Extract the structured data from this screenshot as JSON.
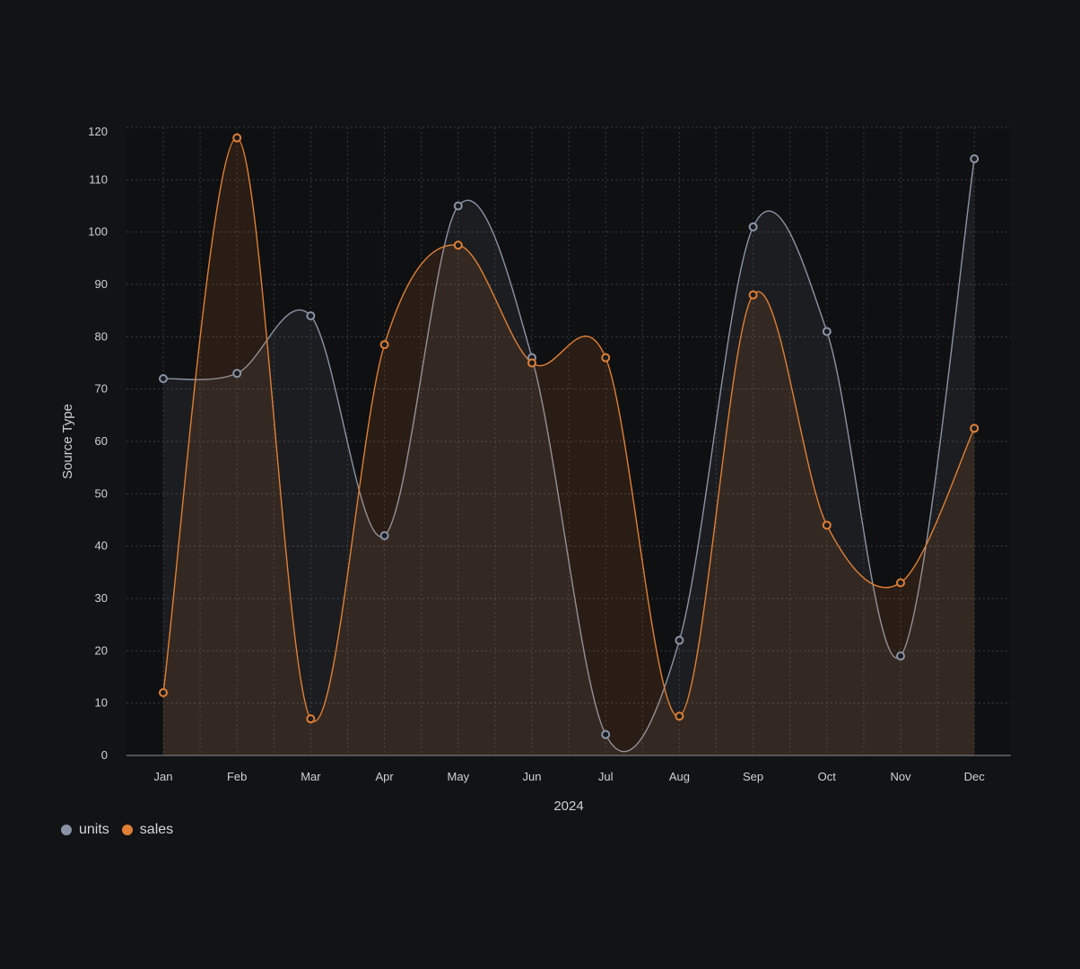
{
  "chart_data": {
    "type": "area",
    "categories": [
      "Jan",
      "Feb",
      "Mar",
      "Apr",
      "May",
      "Jun",
      "Jul",
      "Aug",
      "Sep",
      "Oct",
      "Nov",
      "Dec"
    ],
    "series": [
      {
        "name": "units",
        "color": "#8a94a6",
        "values": [
          72,
          73,
          84,
          42,
          105,
          76,
          4,
          22,
          101,
          81,
          19,
          114
        ]
      },
      {
        "name": "sales",
        "color": "#e07f35",
        "values": [
          12,
          118,
          7,
          78.5,
          97.5,
          75,
          76,
          7.5,
          88,
          44,
          33,
          62.5
        ]
      }
    ],
    "xlabel": "2024",
    "ylabel": "Source Type",
    "ylim": [
      0,
      120
    ],
    "yticks": [
      0,
      10,
      20,
      30,
      40,
      50,
      60,
      70,
      80,
      90,
      100,
      110,
      120
    ],
    "grid": true,
    "legend_position": "bottom-left"
  }
}
